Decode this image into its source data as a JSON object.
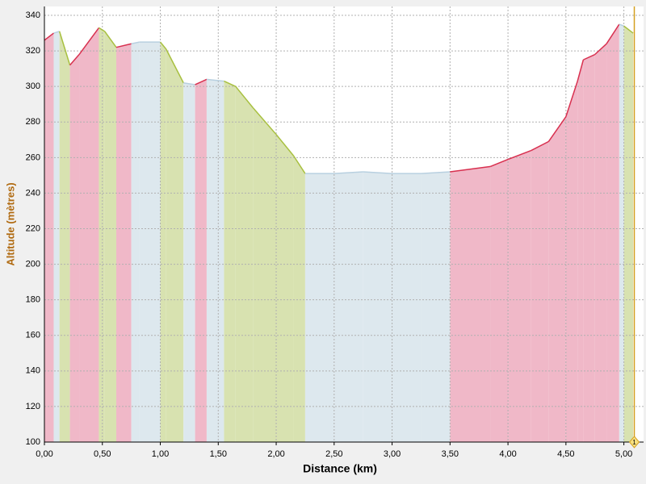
{
  "chart_data": {
    "type": "elevation",
    "xlabel": "Distance (km)",
    "ylabel": "Altitude (mètres)",
    "x": [
      0.0,
      0.08,
      0.13,
      0.22,
      0.3,
      0.47,
      0.52,
      0.62,
      0.75,
      0.82,
      1.0,
      1.05,
      1.2,
      1.3,
      1.4,
      1.55,
      1.65,
      1.8,
      2.0,
      2.15,
      2.25,
      2.5,
      2.75,
      3.0,
      3.25,
      3.5,
      3.85,
      4.0,
      4.2,
      4.35,
      4.5,
      4.6,
      4.65,
      4.75,
      4.85,
      4.96,
      5.0,
      5.08
    ],
    "values": [
      326,
      330,
      331,
      312,
      318,
      333,
      331,
      322,
      324,
      325,
      325,
      321,
      302,
      301,
      304,
      303,
      300,
      288,
      273,
      261,
      251,
      251,
      252,
      251,
      251,
      252,
      255,
      259,
      264,
      269,
      283,
      303,
      315,
      318,
      324,
      335,
      334,
      330
    ],
    "fill_colors": {
      "climb": "#f0b8c8",
      "descent": "#d8e2b0",
      "flat": "#dde8ee"
    },
    "line_colors": {
      "climb": "#d8304f",
      "descent": "#a8c040",
      "flat": "#b8d0e0"
    },
    "xlim": [
      0,
      5.17
    ],
    "ylim": [
      100,
      345
    ],
    "xticks": [
      {
        "value": 0,
        "label": "0,00"
      },
      {
        "value": 0.5,
        "label": "0,50"
      },
      {
        "value": 1,
        "label": "1,00"
      },
      {
        "value": 1.5,
        "label": "1,50"
      },
      {
        "value": 2,
        "label": "2,00"
      },
      {
        "value": 2.5,
        "label": "2,50"
      },
      {
        "value": 3,
        "label": "3,00"
      },
      {
        "value": 3.5,
        "label": "3,50"
      },
      {
        "value": 4,
        "label": "4,00"
      },
      {
        "value": 4.5,
        "label": "4,50"
      },
      {
        "value": 5,
        "label": "5,00"
      }
    ],
    "yticks": [
      100,
      120,
      140,
      160,
      180,
      200,
      220,
      240,
      260,
      280,
      300,
      320,
      340
    ],
    "grid": true,
    "marker": {
      "x": 5.09,
      "label": "1",
      "color": "#d4a020"
    }
  }
}
